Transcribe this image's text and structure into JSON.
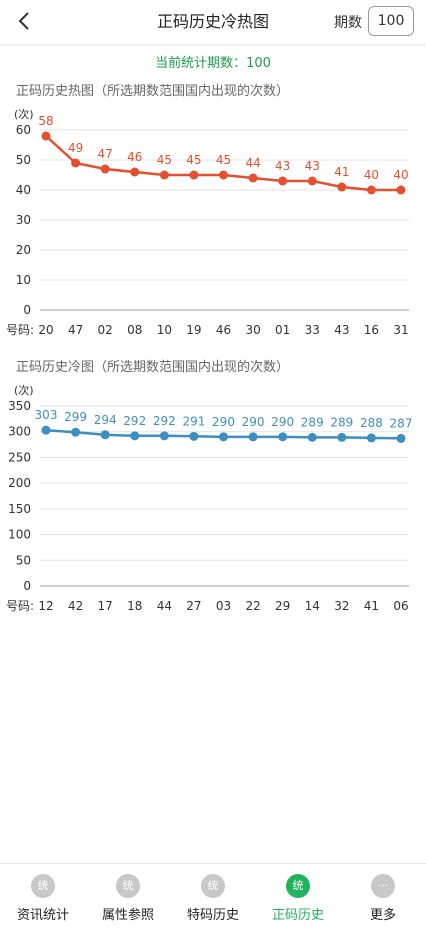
{
  "header": {
    "title": "正码历史冷热图",
    "period_label": "期数",
    "period_value": "100"
  },
  "summary": {
    "current_count": "当前统计期数：100"
  },
  "hot": {
    "section_title": "正码历史热图（所选期数范围国内出现的次数）"
  },
  "cold": {
    "section_title": "正码历史冷图（所选期数范围国内出现的次数）"
  },
  "chart_data": [
    {
      "type": "line",
      "title": "正码历史热图（所选期数范围国内出现的次数）",
      "ylabel": "(次)",
      "xlabel": "号码:",
      "ylim": [
        0,
        60
      ],
      "yticks": [
        0,
        10,
        20,
        30,
        40,
        50,
        60
      ],
      "categories": [
        "20",
        "47",
        "02",
        "08",
        "10",
        "19",
        "46",
        "30",
        "01",
        "33",
        "43",
        "16",
        "31"
      ],
      "values": [
        58,
        49,
        47,
        46,
        45,
        45,
        45,
        44,
        43,
        43,
        41,
        40,
        40
      ],
      "color": "#e4502f",
      "grid": true
    },
    {
      "type": "line",
      "title": "正码历史冷图（所选期数范围国内出现的次数）",
      "ylabel": "(次)",
      "xlabel": "号码:",
      "ylim": [
        0,
        350
      ],
      "yticks": [
        0,
        50,
        100,
        150,
        200,
        250,
        300,
        350
      ],
      "categories": [
        "12",
        "42",
        "17",
        "18",
        "44",
        "27",
        "03",
        "22",
        "29",
        "14",
        "32",
        "41",
        "06"
      ],
      "values": [
        303,
        299,
        294,
        292,
        292,
        291,
        290,
        290,
        290,
        289,
        289,
        288,
        287
      ],
      "color": "#3d8fbf",
      "grid": true
    }
  ],
  "tabbar": {
    "items": [
      {
        "label": "资讯统计",
        "icon": "统",
        "active": false
      },
      {
        "label": "属性参照",
        "icon": "统",
        "active": false
      },
      {
        "label": "特码历史",
        "icon": "统",
        "active": false
      },
      {
        "label": "正码历史",
        "icon": "统",
        "active": true
      },
      {
        "label": "更多",
        "icon": "···",
        "active": false
      }
    ]
  }
}
